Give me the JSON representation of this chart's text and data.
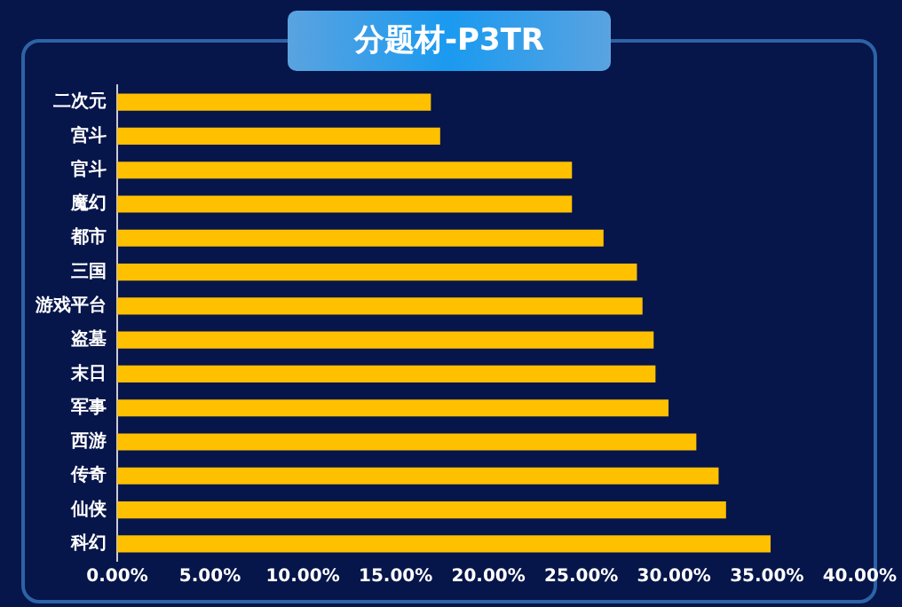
{
  "chart_data": {
    "type": "bar",
    "orientation": "horizontal",
    "title": "分题材-P3TR",
    "categories": [
      "二次元",
      "宫斗",
      "官斗",
      "魔幻",
      "都市",
      "三国",
      "游戏平台",
      "盗墓",
      "末日",
      "军事",
      "西游",
      "传奇",
      "仙侠",
      "科幻"
    ],
    "values": [
      16.9,
      17.4,
      24.5,
      24.5,
      26.2,
      28.0,
      28.3,
      28.9,
      29.0,
      29.7,
      31.2,
      32.4,
      32.8,
      35.2
    ],
    "color": "#ffc000",
    "xlim": [
      0,
      40
    ],
    "xticks": [
      {
        "value": 0,
        "label": "0.00%"
      },
      {
        "value": 5,
        "label": "5.00%"
      },
      {
        "value": 10,
        "label": "10.00%"
      },
      {
        "value": 15,
        "label": "15.00%"
      },
      {
        "value": 20,
        "label": "20.00%"
      },
      {
        "value": 25,
        "label": "25.00%"
      },
      {
        "value": 30,
        "label": "30.00%"
      },
      {
        "value": 35,
        "label": "35.00%"
      },
      {
        "value": 40,
        "label": "40.00%"
      }
    ],
    "grid": false,
    "legend": false
  }
}
